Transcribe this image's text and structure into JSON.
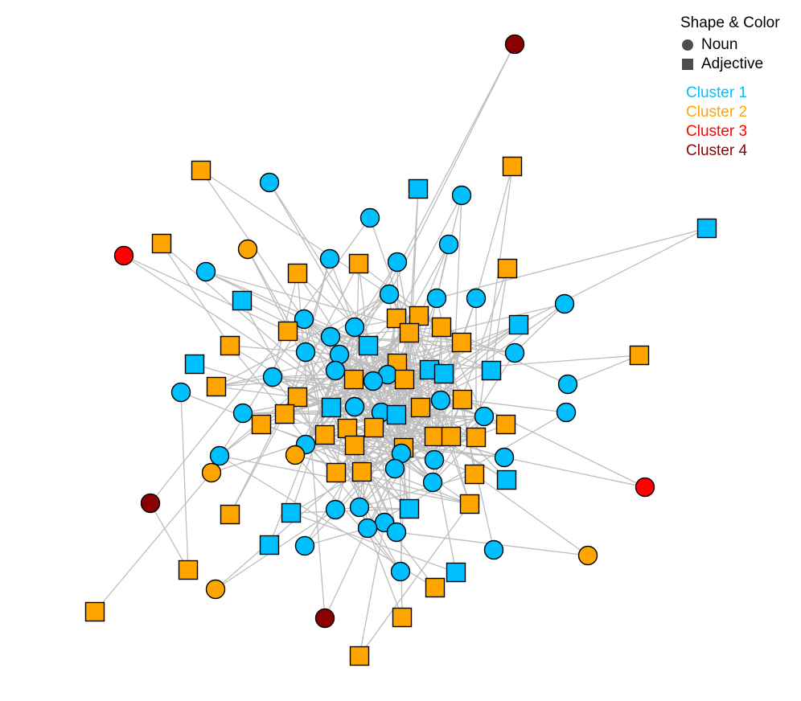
{
  "legend": {
    "title": "Shape & Color",
    "shapes": [
      {
        "label": "Noun",
        "icon": "circle-icon"
      },
      {
        "label": "Adjective",
        "icon": "square-icon"
      }
    ],
    "clusters": [
      {
        "label": "Cluster 1",
        "color": "#00bfff"
      },
      {
        "label": "Cluster 2",
        "color": "#ffa500"
      },
      {
        "label": "Cluster 3",
        "color": "#ff0000"
      },
      {
        "label": "Cluster 4",
        "color": "#8b0000"
      }
    ]
  },
  "style": {
    "edge_color": "#bdbdbd",
    "node_stroke": "#000000",
    "legend_shape_color": "#4d4d4d"
  },
  "graph": {
    "node_count": 112,
    "shape_counts": {
      "Noun": 60,
      "Adjective": 52
    },
    "cluster_counts": {
      "Cluster 1": 61,
      "Cluster 2": 46,
      "Cluster 3": 2,
      "Cluster 4": 3
    }
  }
}
